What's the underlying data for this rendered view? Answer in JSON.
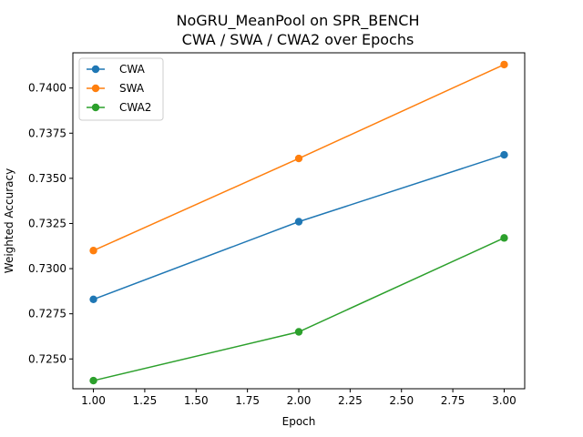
{
  "chart_data": {
    "type": "line",
    "title_line1": "NoGRU_MeanPool on SPR_BENCH",
    "title_line2": "CWA / SWA / CWA2 over Epochs",
    "xlabel": "Epoch",
    "ylabel": "Weighted Accuracy",
    "x": [
      1.0,
      2.0,
      3.0
    ],
    "xlim": [
      0.9,
      3.1
    ],
    "ylim": [
      0.72335,
      0.74195
    ],
    "x_ticks": [
      1.0,
      1.25,
      1.5,
      1.75,
      2.0,
      2.25,
      2.5,
      2.75,
      3.0
    ],
    "x_tick_labels": [
      "1.00",
      "1.25",
      "1.50",
      "1.75",
      "2.00",
      "2.25",
      "2.50",
      "2.75",
      "3.00"
    ],
    "y_ticks": [
      0.725,
      0.7275,
      0.73,
      0.7325,
      0.735,
      0.7375,
      0.74
    ],
    "y_tick_labels": [
      "0.7250",
      "0.7275",
      "0.7300",
      "0.7325",
      "0.7350",
      "0.7375",
      "0.7400"
    ],
    "grid": false,
    "legend_position": "top-left",
    "series": [
      {
        "name": "CWA",
        "color": "#1f77b4",
        "values": [
          0.7283,
          0.7326,
          0.7363
        ]
      },
      {
        "name": "SWA",
        "color": "#ff7f0e",
        "values": [
          0.731,
          0.7361,
          0.7413
        ]
      },
      {
        "name": "CWA2",
        "color": "#2ca02c",
        "values": [
          0.7238,
          0.7265,
          0.7317
        ]
      }
    ]
  }
}
